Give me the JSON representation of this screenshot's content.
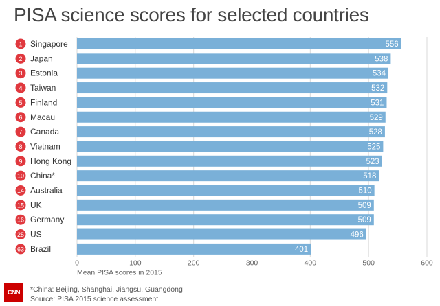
{
  "title": "PISA science scores for selected countries",
  "chart_data": {
    "type": "bar",
    "orientation": "horizontal",
    "ranks": [
      "1",
      "2",
      "3",
      "4",
      "5",
      "6",
      "7",
      "8",
      "9",
      "10",
      "14",
      "15",
      "16",
      "25",
      "63"
    ],
    "categories": [
      "Singapore",
      "Japan",
      "Estonia",
      "Taiwan",
      "Finland",
      "Macau",
      "Canada",
      "Vietnam",
      "Hong Kong",
      "China*",
      "Australia",
      "UK",
      "Germany",
      "US",
      "Brazil"
    ],
    "values": [
      556,
      538,
      534,
      532,
      531,
      529,
      528,
      525,
      523,
      518,
      510,
      509,
      509,
      496,
      401
    ],
    "xlim": [
      0,
      600
    ],
    "xticks": [
      0,
      100,
      200,
      300,
      400,
      500,
      600
    ],
    "xlabel": "Mean PISA scores in 2015",
    "grid": true,
    "bar_color": "#7ab0d8",
    "rank_badge_color": "#e0383e"
  },
  "footer": {
    "logo_text": "CNN",
    "note": "*China: Beijing, Shanghai, Jiangsu, Guangdong",
    "source": "Source: PISA 2015 science assessment"
  }
}
